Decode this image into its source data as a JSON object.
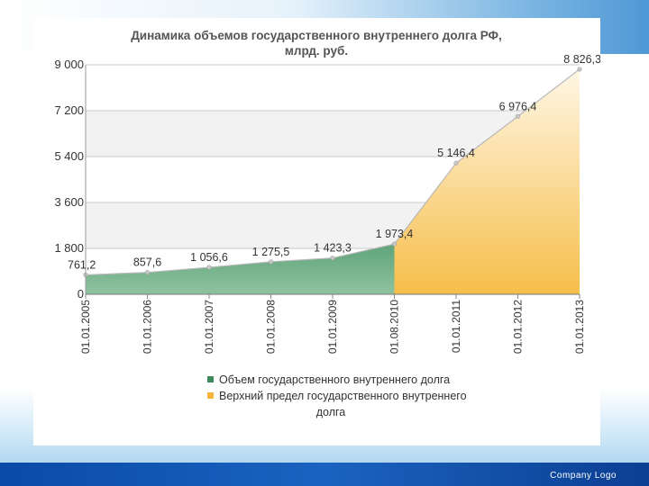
{
  "slide": {
    "footer_text": "Company  Logo"
  },
  "chart_data": {
    "type": "area",
    "title_lines": [
      "Динамика объемов государственного внутреннего долга РФ,",
      "млрд. руб."
    ],
    "categories": [
      "01.01.2005",
      "01.01.2006",
      "01.01.2007",
      "01.01.2008",
      "01.01.2009",
      "01.08.2010",
      "01.01.2011",
      "01.01.2012",
      "01.01.2013"
    ],
    "values": [
      761.2,
      857.6,
      1056.6,
      1275.5,
      1423.3,
      1973.4,
      5146.4,
      6976.4,
      8826.3
    ],
    "data_labels": [
      "761,2",
      "857,6",
      "1 056,6",
      "1 275,5",
      "1 423,3",
      "1 973,4",
      "5 146,4",
      "6 976,4",
      "8 826,3"
    ],
    "series": [
      {
        "name": "Объем государственного внутреннего долга",
        "from_index": 0,
        "to_index": 5,
        "color": "#3f8a5c"
      },
      {
        "name_lines": [
          "Верхний предел государственного внутреннего",
          "долга"
        ],
        "from_index": 5,
        "to_index": 8,
        "color": "#f6b53a"
      }
    ],
    "yticks": [
      0,
      1800,
      3600,
      5400,
      7200,
      9000
    ],
    "ytick_labels": [
      "0",
      "1 800",
      "3 600",
      "5 400",
      "7 200",
      "9 000"
    ],
    "ylim": [
      0,
      9000
    ],
    "grid": true,
    "legend_position": "bottom"
  }
}
